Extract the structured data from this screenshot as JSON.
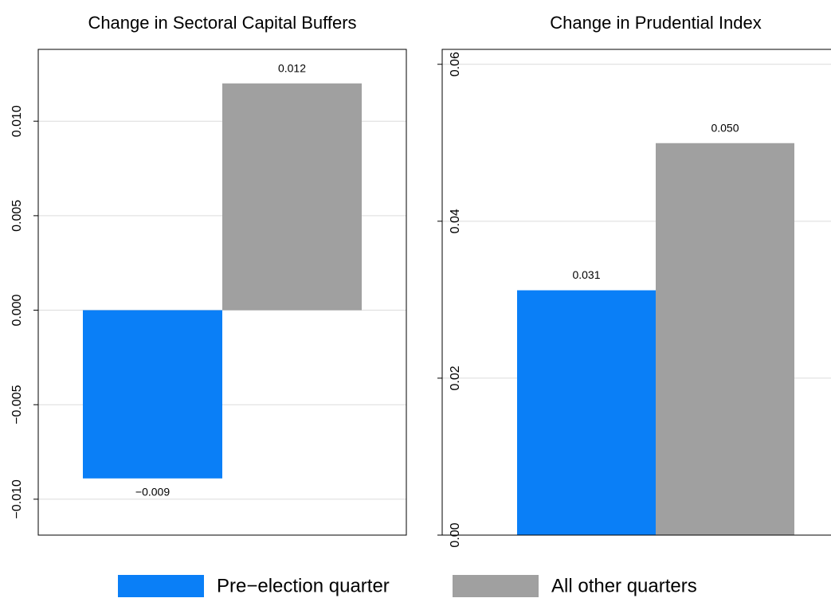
{
  "chart_data": [
    {
      "type": "bar",
      "title": "Change in Sectoral Capital Buffers",
      "series": [
        {
          "name": "Pre−election quarter",
          "color": "#0a7ff7",
          "values": [
            -0.0089
          ],
          "value_labels": [
            "−0.009"
          ]
        },
        {
          "name": "All other quarters",
          "color": "#a0a0a0",
          "values": [
            0.012
          ],
          "value_labels": [
            "0.012"
          ]
        }
      ],
      "ylim": [
        -0.0119,
        0.0138
      ],
      "yticks": [
        {
          "value": -0.01,
          "label": "−0.010"
        },
        {
          "value": -0.005,
          "label": "−0.005"
        },
        {
          "value": 0,
          "label": "0.000"
        },
        {
          "value": 0.005,
          "label": "0.005"
        },
        {
          "value": 0.01,
          "label": "0.010"
        }
      ],
      "grid": true
    },
    {
      "type": "bar",
      "title": "Change in Prudential Index",
      "series": [
        {
          "color": "#0a7ff7",
          "values": [
            0.0312
          ],
          "value_labels": [
            "0.031"
          ]
        },
        {
          "color": "#a0a0a0",
          "values": [
            0.04995
          ],
          "value_labels": [
            "0.050"
          ]
        }
      ],
      "ylim": [
        0,
        0.0619
      ],
      "yticks": [
        {
          "value": 0,
          "label": "0.00"
        },
        {
          "value": 0.02,
          "label": "0.02"
        },
        {
          "value": 0.04,
          "label": "0.04"
        },
        {
          "value": 0.06,
          "label": "0.06"
        }
      ],
      "grid": true
    }
  ]
}
